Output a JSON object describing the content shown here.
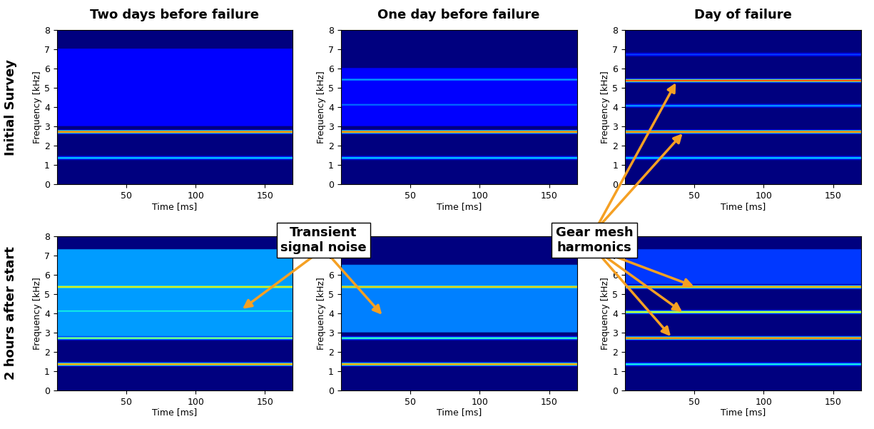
{
  "column_titles": [
    "Two days before failure",
    "One day before failure",
    "Day of failure"
  ],
  "row_titles": [
    "Initial Survey",
    "2 hours after start"
  ],
  "annotations": [
    {
      "text": "Transient\nsignal noise"
    },
    {
      "text": "Gear mesh\nharmonics"
    }
  ],
  "chart_data": [
    {
      "type": "spectrogram",
      "xlabel": "Time [ms]",
      "ylabel": "Frequency [kHz]",
      "color": "jet",
      "xlim": [
        0,
        170
      ],
      "xticks": [
        50,
        100,
        150
      ],
      "ylim": [
        0,
        8
      ],
      "yticks": [
        0,
        1,
        2,
        3,
        4,
        5,
        6,
        7,
        8
      ],
      "clim": [
        0,
        1
      ],
      "bands": [
        {
          "frequency": 1.35,
          "level": 0.35
        },
        {
          "frequency": 2.7,
          "level": 0.85
        }
      ],
      "noise": [
        {
          "from": 3.0,
          "to": 7.0,
          "level": 0.12
        }
      ]
    },
    {
      "type": "spectrogram",
      "xlabel": "Time [ms]",
      "ylabel": "Frequency [kHz]",
      "color": "jet",
      "xlim": [
        0,
        170
      ],
      "xticks": [
        50,
        100,
        150
      ],
      "ylim": [
        0,
        8
      ],
      "yticks": [
        0,
        1,
        2,
        3,
        4,
        5,
        6,
        7,
        8
      ],
      "clim": [
        0,
        1
      ],
      "bands": [
        {
          "frequency": 1.35,
          "level": 0.35
        },
        {
          "frequency": 2.7,
          "level": 0.85
        },
        {
          "frequency": 4.1,
          "level": 0.25
        },
        {
          "frequency": 5.4,
          "level": 0.3
        }
      ],
      "noise": [
        {
          "from": 3.0,
          "to": 6.0,
          "level": 0.12
        }
      ]
    },
    {
      "type": "spectrogram",
      "xlabel": "Time [ms]",
      "ylabel": "Frequency [kHz]",
      "color": "jet",
      "xlim": [
        0,
        170
      ],
      "xticks": [
        50,
        100,
        150
      ],
      "ylim": [
        0,
        8
      ],
      "yticks": [
        0,
        1,
        2,
        3,
        4,
        5,
        6,
        7,
        8
      ],
      "clim": [
        0,
        1
      ],
      "bands": [
        {
          "frequency": 1.35,
          "level": 0.35
        },
        {
          "frequency": 2.7,
          "level": 0.85
        },
        {
          "frequency": 4.05,
          "level": 0.3
        },
        {
          "frequency": 5.35,
          "level": 0.9
        },
        {
          "frequency": 6.7,
          "level": 0.2
        }
      ],
      "noise": []
    },
    {
      "type": "spectrogram",
      "xlabel": "Time [ms]",
      "ylabel": "Frequency [kHz]",
      "color": "jet",
      "xlim": [
        0,
        170
      ],
      "xticks": [
        50,
        100,
        150
      ],
      "ylim": [
        0,
        8
      ],
      "yticks": [
        0,
        1,
        2,
        3,
        4,
        5,
        6,
        7,
        8
      ],
      "clim": [
        0,
        1
      ],
      "bands": [
        {
          "frequency": 1.35,
          "level": 0.8
        },
        {
          "frequency": 2.7,
          "level": 0.55
        },
        {
          "frequency": 4.1,
          "level": 0.4
        },
        {
          "frequency": 5.35,
          "level": 0.7
        }
      ],
      "noise": [
        {
          "from": 2.8,
          "to": 7.3,
          "level": 0.28
        }
      ]
    },
    {
      "type": "spectrogram",
      "xlabel": "Time [ms]",
      "ylabel": "Frequency [kHz]",
      "color": "jet",
      "xlim": [
        0,
        170
      ],
      "xticks": [
        50,
        100,
        150
      ],
      "ylim": [
        0,
        8
      ],
      "yticks": [
        0,
        1,
        2,
        3,
        4,
        5,
        6,
        7,
        8
      ],
      "clim": [
        0,
        1
      ],
      "bands": [
        {
          "frequency": 1.35,
          "level": 0.8
        },
        {
          "frequency": 2.7,
          "level": 0.45
        },
        {
          "frequency": 5.35,
          "level": 0.75
        }
      ],
      "noise": [
        {
          "from": 3.0,
          "to": 6.5,
          "level": 0.25
        }
      ]
    },
    {
      "type": "spectrogram",
      "xlabel": "Time [ms]",
      "ylabel": "Frequency [kHz]",
      "color": "jet",
      "xlim": [
        0,
        170
      ],
      "xticks": [
        50,
        100,
        150
      ],
      "ylim": [
        0,
        8
      ],
      "yticks": [
        0,
        1,
        2,
        3,
        4,
        5,
        6,
        7,
        8
      ],
      "clim": [
        0,
        1
      ],
      "bands": [
        {
          "frequency": 1.35,
          "level": 0.4
        },
        {
          "frequency": 2.7,
          "level": 0.85
        },
        {
          "frequency": 4.05,
          "level": 0.65
        },
        {
          "frequency": 5.35,
          "level": 0.8
        }
      ],
      "noise": [
        {
          "from": 5.5,
          "to": 7.3,
          "level": 0.18
        }
      ]
    }
  ]
}
